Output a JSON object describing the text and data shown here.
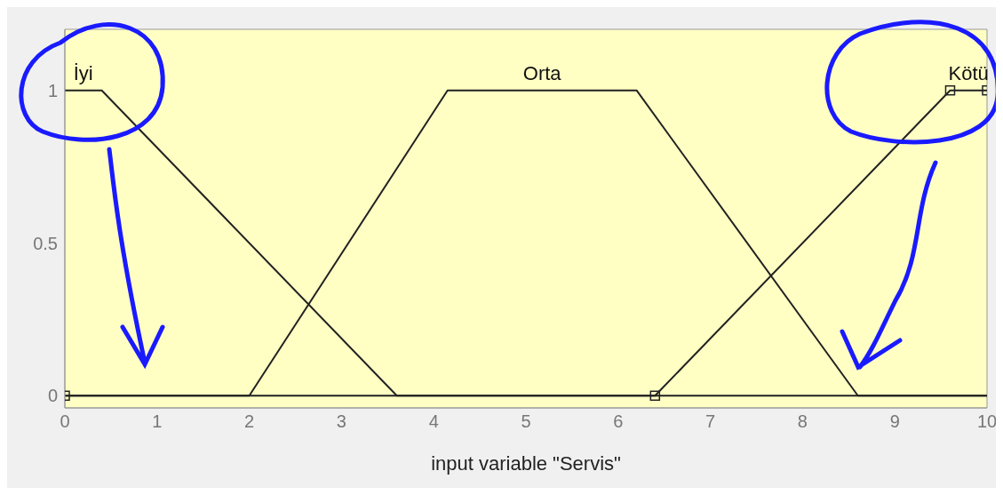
{
  "chart_data": {
    "type": "line",
    "xlabel": "input variable \"Servis\"",
    "series": [
      {
        "name": "İyi",
        "color": "#222222",
        "x": [
          0,
          0.4,
          3.6,
          10
        ],
        "values": [
          1,
          1,
          0,
          0
        ]
      },
      {
        "name": "Orta",
        "color": "#222222",
        "x": [
          0,
          2,
          4.15,
          6.2,
          8.6,
          10
        ],
        "values": [
          0,
          0,
          1,
          1,
          0,
          0
        ]
      },
      {
        "name": "Kötü",
        "color": "#222222",
        "x": [
          0,
          6.4,
          9.6,
          10
        ],
        "values": [
          0,
          0,
          1,
          1
        ],
        "marker": "square"
      }
    ],
    "xlim": [
      0,
      10
    ],
    "xticks": [
      0,
      1,
      2,
      3,
      4,
      5,
      6,
      7,
      8,
      9,
      10
    ],
    "ylim": [
      -0.04,
      1.2
    ],
    "yticks": [
      0,
      0.5,
      1
    ]
  }
}
